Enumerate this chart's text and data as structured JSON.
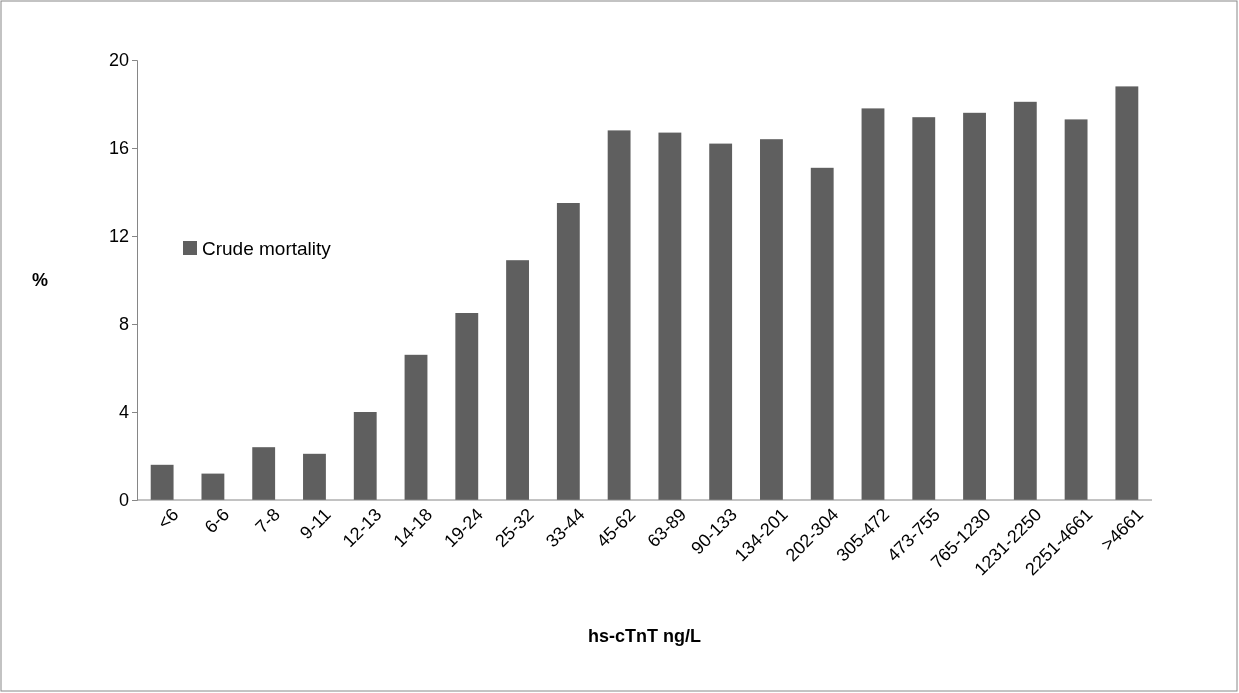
{
  "chart_data": {
    "type": "bar",
    "xlabel": "hs-cTnT ng/L",
    "ylabel": "%",
    "categories": [
      "<6",
      "6-6",
      "7-8",
      "9-11",
      "12-13",
      "14-18",
      "19-24",
      "25-32",
      "33-44",
      "45-62",
      "63-89",
      "90-133",
      "134-201",
      "202-304",
      "305-472",
      "473-755",
      "765-1230",
      "1231-2250",
      "2251-4661",
      ">4661"
    ],
    "series": [
      {
        "name": "Crude mortality",
        "color": "#5f5f5f",
        "values": [
          1.6,
          1.2,
          2.4,
          2.1,
          4.0,
          6.6,
          8.5,
          10.9,
          13.5,
          16.8,
          16.7,
          16.2,
          16.4,
          15.1,
          17.8,
          17.4,
          17.6,
          18.1,
          17.3,
          18.8
        ]
      }
    ],
    "ylim": [
      0,
      20
    ],
    "yticks": [
      0,
      4,
      8,
      12,
      16,
      20
    ],
    "grid": false,
    "legend": "left"
  }
}
